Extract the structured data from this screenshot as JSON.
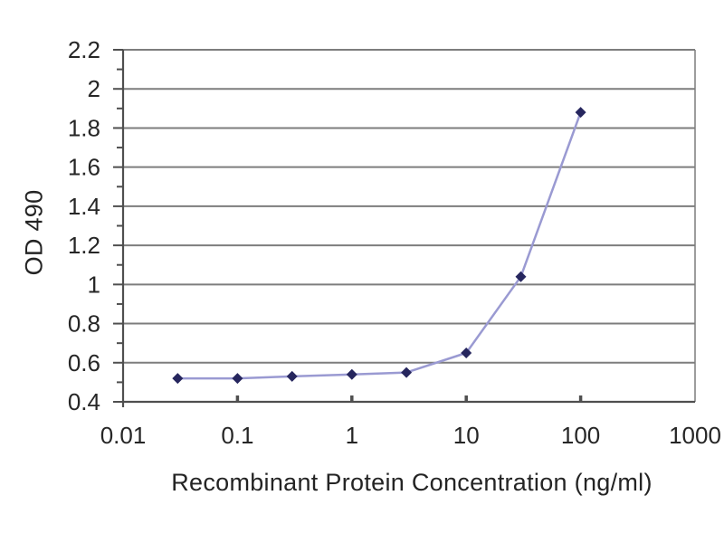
{
  "chart_data": {
    "type": "line",
    "title": "",
    "xlabel": "Recombinant Protein Concentration (ng/ml)",
    "ylabel": "OD 490",
    "x_scale": "log",
    "xlim": [
      0.01,
      1000
    ],
    "ylim": [
      0.4,
      2.2
    ],
    "grid": true,
    "legend": "none",
    "x_ticks": [
      {
        "v": 0.01,
        "label": "0.01"
      },
      {
        "v": 0.1,
        "label": "0.1"
      },
      {
        "v": 1,
        "label": "1"
      },
      {
        "v": 10,
        "label": "10"
      },
      {
        "v": 100,
        "label": "100"
      },
      {
        "v": 1000,
        "label": "1000"
      }
    ],
    "y_ticks": [
      {
        "v": 0.4,
        "label": "0.4"
      },
      {
        "v": 0.6,
        "label": "0.6"
      },
      {
        "v": 0.8,
        "label": "0.8"
      },
      {
        "v": 1,
        "label": "1"
      },
      {
        "v": 1.2,
        "label": "1.2"
      },
      {
        "v": 1.4,
        "label": "1.4"
      },
      {
        "v": 1.6,
        "label": "1.6"
      },
      {
        "v": 1.8,
        "label": "1.8"
      },
      {
        "v": 2,
        "label": "2"
      },
      {
        "v": 2.2,
        "label": "2.2"
      }
    ],
    "y_minor_tick_step": 0.1,
    "series": [
      {
        "name": "OD 490",
        "marker": "diamond",
        "line_color": "#9a9ad2",
        "marker_color": "#26265e",
        "x": [
          0.03,
          0.1,
          0.3,
          1,
          3,
          10,
          30,
          100
        ],
        "y": [
          0.52,
          0.52,
          0.53,
          0.54,
          0.55,
          0.65,
          1.04,
          1.88
        ]
      }
    ],
    "colors": {
      "background": "#ffffff",
      "gridline": "#7d7d7d",
      "axis": "#4f4f4f",
      "text": "#262626"
    }
  }
}
